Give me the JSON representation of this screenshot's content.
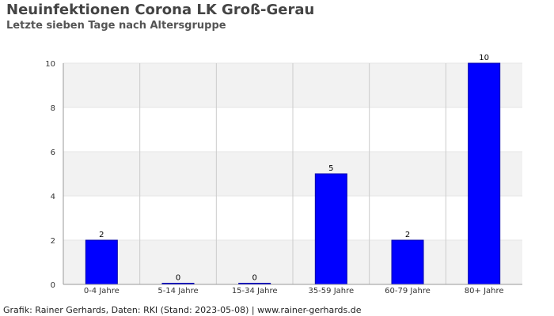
{
  "chart_data": {
    "type": "bar",
    "title": "Neuinfektionen Corona LK Groß-Gerau",
    "subtitle": "Letzte sieben Tage nach Altersgruppe",
    "categories": [
      "0-4 Jahre",
      "5-14 Jahre",
      "15-34 Jahre",
      "35-59 Jahre",
      "60-79 Jahre",
      "80+ Jahre"
    ],
    "values": [
      2,
      0,
      0,
      5,
      2,
      10
    ],
    "ylim": [
      0,
      10
    ],
    "yticks": [
      0,
      2,
      4,
      6,
      8,
      10
    ],
    "grid": true,
    "bar_color": "#0000ff",
    "band_color": "#f2f2f2",
    "grid_color": "#cccccc"
  },
  "footer": "Grafik: Rainer Gerhards, Daten: RKI (Stand: 2023-05-08) | www.rainer-gerhards.de"
}
